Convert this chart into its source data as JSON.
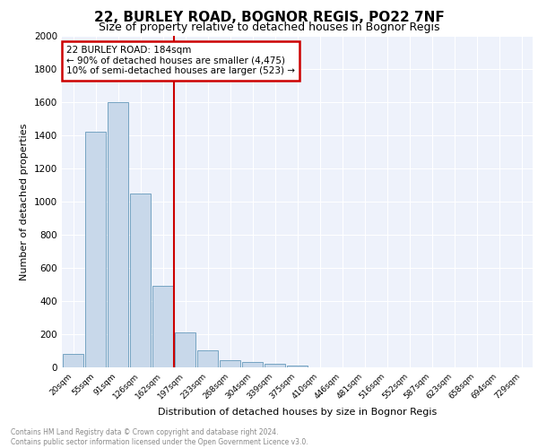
{
  "title": "22, BURLEY ROAD, BOGNOR REGIS, PO22 7NF",
  "subtitle": "Size of property relative to detached houses in Bognor Regis",
  "xlabel": "Distribution of detached houses by size in Bognor Regis",
  "ylabel": "Number of detached properties",
  "footnote1": "Contains HM Land Registry data © Crown copyright and database right 2024.",
  "footnote2": "Contains public sector information licensed under the Open Government Licence v3.0.",
  "bin_labels": [
    "20sqm",
    "55sqm",
    "91sqm",
    "126sqm",
    "162sqm",
    "197sqm",
    "233sqm",
    "268sqm",
    "304sqm",
    "339sqm",
    "375sqm",
    "410sqm",
    "446sqm",
    "481sqm",
    "516sqm",
    "552sqm",
    "587sqm",
    "623sqm",
    "658sqm",
    "694sqm",
    "729sqm"
  ],
  "bar_heights": [
    80,
    1420,
    1600,
    1050,
    490,
    210,
    105,
    45,
    35,
    20,
    10,
    0,
    0,
    0,
    0,
    0,
    0,
    0,
    0,
    0,
    0
  ],
  "bar_color": "#c8d8ea",
  "bar_edge_color": "#6699bb",
  "vline_x": 4.5,
  "vline_color": "#cc0000",
  "annotation_title": "22 BURLEY ROAD: 184sqm",
  "annotation_line1": "← 90% of detached houses are smaller (4,475)",
  "annotation_line2": "10% of semi-detached houses are larger (523) →",
  "ylim": [
    0,
    2000
  ],
  "yticks": [
    0,
    200,
    400,
    600,
    800,
    1000,
    1200,
    1400,
    1600,
    1800,
    2000
  ],
  "plot_background": "#eef2fb",
  "grid_color": "#ffffff",
  "title_fontsize": 11,
  "subtitle_fontsize": 9
}
